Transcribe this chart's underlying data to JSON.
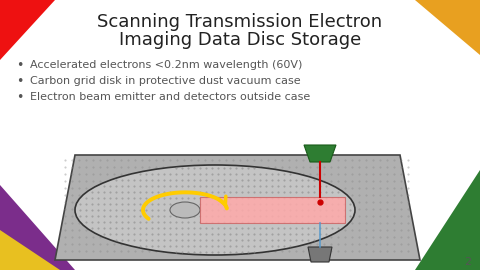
{
  "title_line1": "Scanning Transmission Electron",
  "title_line2": "Imaging Data Disc Storage",
  "bullets": [
    "Accelerated electrons <0.2nm wavelength (60V)",
    "Carbon grid disk in protective dust vacuum case",
    "Electron beam emitter and detectors outside case"
  ],
  "bg_color": "#ffffff",
  "title_color": "#222222",
  "bullet_color": "#555555",
  "corner_colors": {
    "top_left": "#ee1111",
    "top_right": "#e8a020",
    "bottom_left_purple": "#7b2d8b",
    "bottom_left_yellow": "#e8c020",
    "bottom_right": "#2e7d32"
  },
  "slide_number": "2",
  "case_color": "#b0b0b0",
  "disk_color": "#c4c4c4",
  "grid_dot_color": "#999999",
  "emitter_color": "#2e7d32",
  "beam_red": "#cc0000",
  "beam_blue": "#5599cc",
  "scan_rect_color": "#ffaaaa",
  "scan_rect_edge": "#cc6666",
  "arrow_color": "#ffcc00",
  "detector_color": "#777777",
  "hole_color": "#aaaaaa"
}
